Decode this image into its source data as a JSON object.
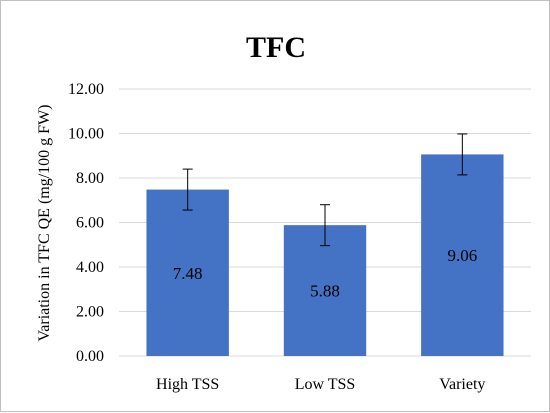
{
  "chart_data": {
    "type": "bar",
    "title": "TFC",
    "xlabel": "",
    "ylabel": "Variation in TFC QE (mg/100 g FW)",
    "categories": [
      "High TSS",
      "Low TSS",
      "Variety"
    ],
    "values": [
      7.48,
      5.88,
      9.06
    ],
    "errors": [
      0.92,
      0.92,
      0.92
    ],
    "data_labels": [
      "7.48",
      "5.88",
      "9.06"
    ],
    "ylim": [
      0,
      12
    ],
    "yticks": [
      0,
      2,
      4,
      6,
      8,
      10,
      12
    ],
    "ytick_labels": [
      "0.00",
      "2.00",
      "4.00",
      "6.00",
      "8.00",
      "10.00",
      "12.00"
    ],
    "grid": true,
    "legend": "none",
    "bar_color": "#4472c4",
    "grid_color": "#d9d9d9"
  }
}
